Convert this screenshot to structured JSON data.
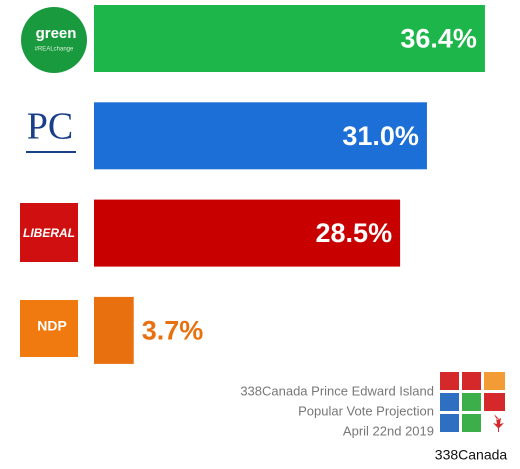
{
  "chart_data": {
    "type": "hbar",
    "categories": [
      "green",
      "PC",
      "LIBERAL",
      "NDP"
    ],
    "logo_subtext": "#REALchange",
    "values": [
      36.4,
      31.0,
      28.5,
      3.7
    ],
    "value_labels": [
      "36.4%",
      "31.0%",
      "28.5%",
      "3.7%"
    ],
    "colors": [
      "#1db64a",
      "#1b6fd6",
      "#c80000",
      "#e8700f"
    ],
    "notes": [
      "338Canada Prince Edward Island",
      "Popular Vote Projection",
      "April 22nd 2019"
    ],
    "brand": "338Canada"
  }
}
